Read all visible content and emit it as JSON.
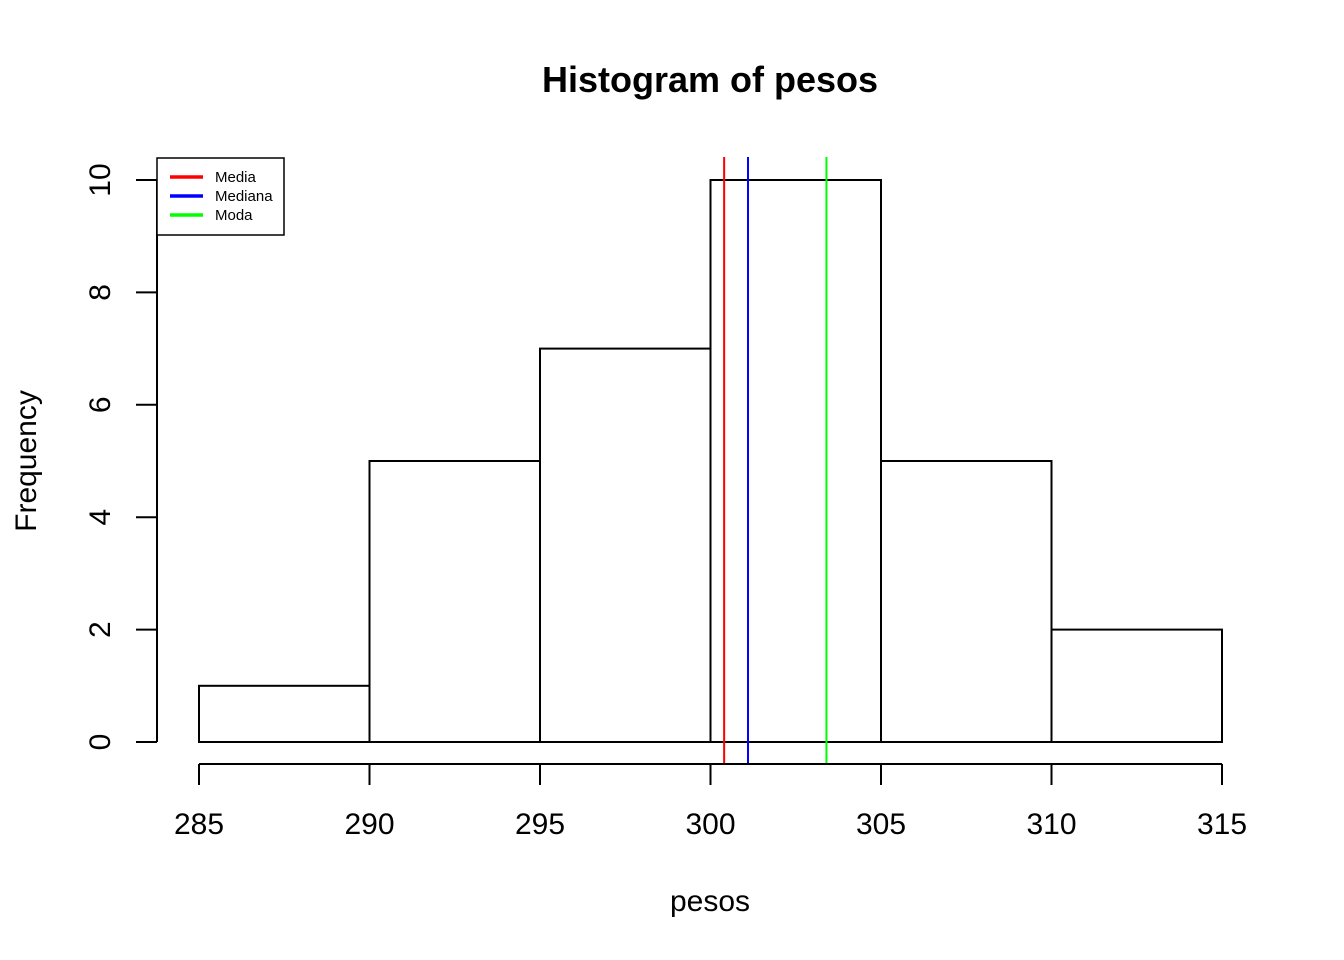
{
  "chart_data": {
    "type": "bar",
    "title": "Histogram of pesos",
    "xlabel": "pesos",
    "ylabel": "Frequency",
    "bins": [
      {
        "from": 285,
        "to": 290,
        "count": 1
      },
      {
        "from": 290,
        "to": 295,
        "count": 5
      },
      {
        "from": 295,
        "to": 300,
        "count": 7
      },
      {
        "from": 300,
        "to": 305,
        "count": 10
      },
      {
        "from": 305,
        "to": 310,
        "count": 5
      },
      {
        "from": 310,
        "to": 315,
        "count": 2
      }
    ],
    "xlim": [
      285,
      315
    ],
    "ylim": [
      0,
      10
    ],
    "x_ticks": [
      "285",
      "290",
      "295",
      "300",
      "305",
      "310",
      "315"
    ],
    "y_ticks": [
      "0",
      "2",
      "4",
      "6",
      "8",
      "10"
    ],
    "vlines": [
      {
        "name": "Media",
        "x": 300.4,
        "color": "#ff0000"
      },
      {
        "name": "Mediana",
        "x": 301.1,
        "color": "#0000ff"
      },
      {
        "name": "Moda",
        "x": 303.4,
        "color": "#00ff00"
      }
    ],
    "legend": {
      "position": "top-left",
      "entries": [
        {
          "label": "Media",
          "color": "#ff0000"
        },
        {
          "label": "Mediana",
          "color": "#0000ff"
        },
        {
          "label": "Moda",
          "color": "#00ff00"
        }
      ]
    },
    "grid": false
  }
}
